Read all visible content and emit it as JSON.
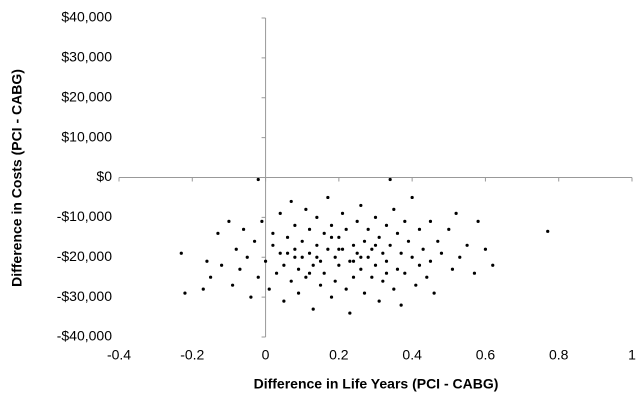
{
  "chart_data": {
    "type": "scatter",
    "xlabel": "Difference in Life Years (PCI - CABG)",
    "ylabel": "Difference in Costs (PCI - CABG)",
    "xlim": [
      -0.4,
      1
    ],
    "xticks": [
      -0.4,
      -0.2,
      0,
      0.2,
      0.4,
      0.6,
      0.8,
      1
    ],
    "ylim": [
      -40000,
      40000
    ],
    "yticks": [
      {
        "value": -40000,
        "label": "-$40,000"
      },
      {
        "value": -30000,
        "label": "-$30,000"
      },
      {
        "value": -20000,
        "label": "-$20,000"
      },
      {
        "value": -10000,
        "label": "-$10,000"
      },
      {
        "value": 0,
        "label": "$0"
      },
      {
        "value": 10000,
        "label": "$10,000"
      },
      {
        "value": 20000,
        "label": "$20,000"
      },
      {
        "value": 30000,
        "label": "$30,000"
      },
      {
        "value": 40000,
        "label": "$40,000"
      }
    ],
    "color": "#000000",
    "x": [
      -0.23,
      -0.22,
      -0.17,
      -0.16,
      -0.15,
      -0.13,
      -0.12,
      -0.1,
      -0.09,
      -0.08,
      -0.07,
      -0.06,
      -0.05,
      -0.04,
      -0.03,
      -0.02,
      -0.02,
      -0.01,
      0,
      0.01,
      0.02,
      0.02,
      0.03,
      0.04,
      0.04,
      0.05,
      0.05,
      0.06,
      0.07,
      0.07,
      0.08,
      0.08,
      0.09,
      0.09,
      0.1,
      0.1,
      0.11,
      0.11,
      0.12,
      0.12,
      0.13,
      0.13,
      0.14,
      0.14,
      0.15,
      0.15,
      0.16,
      0.16,
      0.17,
      0.17,
      0.18,
      0.18,
      0.19,
      0.19,
      0.2,
      0.2,
      0.21,
      0.21,
      0.22,
      0.22,
      0.23,
      0.23,
      0.24,
      0.24,
      0.25,
      0.25,
      0.26,
      0.26,
      0.27,
      0.27,
      0.28,
      0.28,
      0.29,
      0.29,
      0.3,
      0.3,
      0.31,
      0.31,
      0.32,
      0.32,
      0.33,
      0.33,
      0.34,
      0.34,
      0.35,
      0.35,
      0.36,
      0.36,
      0.37,
      0.37,
      0.38,
      0.38,
      0.39,
      0.4,
      0.4,
      0.41,
      0.42,
      0.42,
      0.43,
      0.44,
      0.45,
      0.45,
      0.46,
      0.47,
      0.48,
      0.5,
      0.51,
      0.52,
      0.53,
      0.55,
      0.57,
      0.58,
      0.6,
      0.62,
      0.77,
      0.08,
      0.14,
      0.2,
      0.26,
      0.3,
      0.12,
      0.18,
      0.24,
      0.33,
      0.06
    ],
    "y": [
      -19000,
      -29000,
      -28000,
      -21000,
      -25000,
      -14000,
      -22000,
      -11000,
      -27000,
      -18000,
      -23000,
      -13000,
      -20000,
      -30000,
      -16000,
      -500,
      -25000,
      -11000,
      -21000,
      -28000,
      -17000,
      -14000,
      -24000,
      -9000,
      -19000,
      -31000,
      -22000,
      -15000,
      -26000,
      -6000,
      -18000,
      -12000,
      -23000,
      -29000,
      -16000,
      -20000,
      -8000,
      -25000,
      -13000,
      -19000,
      -33000,
      -22000,
      -17000,
      -10000,
      -27000,
      -21000,
      -14000,
      -24000,
      -5000,
      -18000,
      -30000,
      -12000,
      -20000,
      -26000,
      -15000,
      -22000,
      -9000,
      -18000,
      -28000,
      -13000,
      -21000,
      -34000,
      -17000,
      -25000,
      -11000,
      -19000,
      -23000,
      -7000,
      -16000,
      -29000,
      -20000,
      -13000,
      -25000,
      -18000,
      -10000,
      -22000,
      -31000,
      -15000,
      -19000,
      -26000,
      -12000,
      -21000,
      -500,
      -17000,
      -28000,
      -8000,
      -23000,
      -14000,
      -19000,
      -32000,
      -11000,
      -24000,
      -16000,
      -20000,
      -5000,
      -27000,
      -13000,
      -22000,
      -18000,
      -25000,
      -11000,
      -21000,
      -29000,
      -16000,
      -19000,
      -13000,
      -23000,
      -9000,
      -20000,
      -17000,
      -24000,
      -11000,
      -18000,
      -22000,
      -13500,
      -20000,
      -20000,
      -18000,
      -20000,
      -17000,
      -24000,
      -15000,
      -21000,
      -24000,
      -19000
    ]
  }
}
